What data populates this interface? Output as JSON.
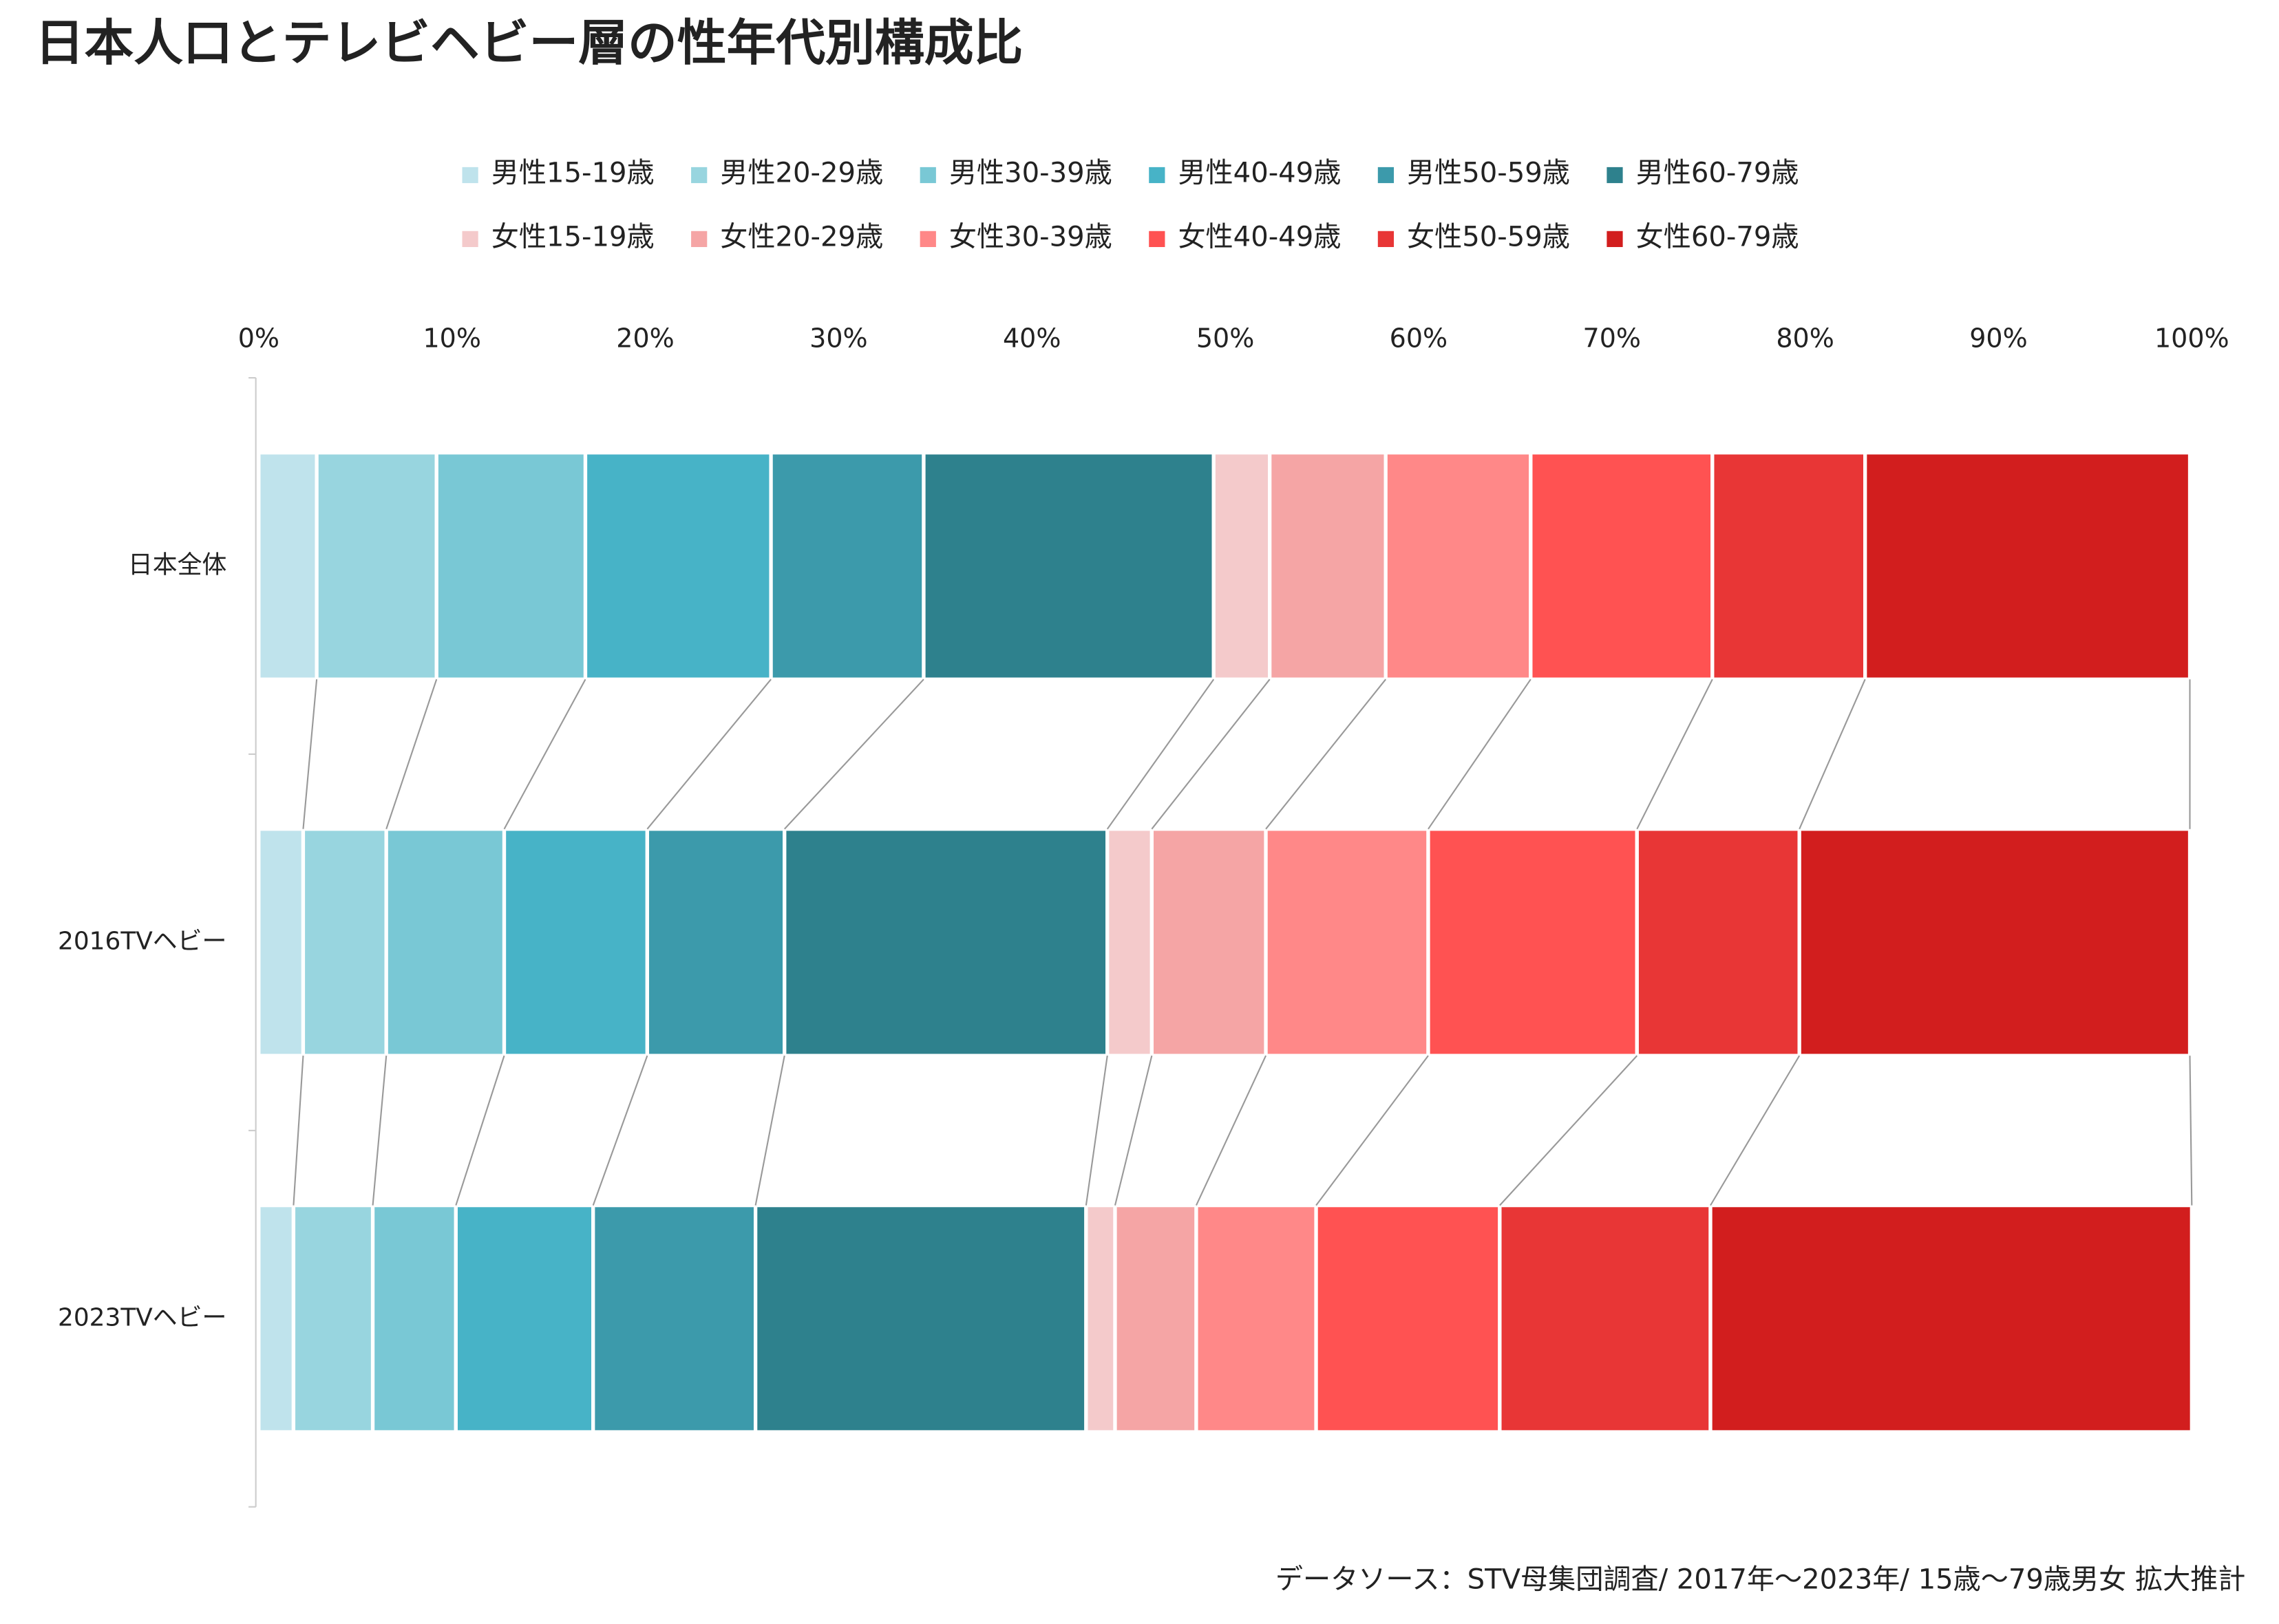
{
  "chart_data": {
    "type": "bar",
    "orientation": "horizontal",
    "stacked": true,
    "title": "日本人口とテレビヘビー層の性年代別構成比",
    "source": "データソース：STV母集団調査/ 2017年～2023年/ 15歳～79歳男女 拡大推計",
    "categories": [
      "日本全体",
      "2016TVヘビー",
      "2023TVヘビー"
    ],
    "series": [
      {
        "name": "男性15-19歳",
        "color": "#bfe3ec",
        "values": [
          3.0,
          2.3,
          1.8
        ]
      },
      {
        "name": "男性20-29歳",
        "color": "#98d5df",
        "values": [
          6.2,
          4.3,
          4.1
        ]
      },
      {
        "name": "男性30-39歳",
        "color": "#79c8d5",
        "values": [
          7.7,
          6.1,
          4.3
        ]
      },
      {
        "name": "男性40-49歳",
        "color": "#47b3c7",
        "values": [
          9.6,
          7.4,
          7.1
        ]
      },
      {
        "name": "男性50-59歳",
        "color": "#3c9aab",
        "values": [
          7.9,
          7.1,
          8.4
        ]
      },
      {
        "name": "男性60-79歳",
        "color": "#2e818d",
        "values": [
          15.0,
          16.7,
          17.1
        ]
      },
      {
        "name": "女性15-19歳",
        "color": "#f4cacb",
        "values": [
          2.9,
          2.3,
          1.5
        ]
      },
      {
        "name": "女性20-29歳",
        "color": "#f5a5a5",
        "values": [
          6.0,
          5.9,
          4.2
        ]
      },
      {
        "name": "女性30-39歳",
        "color": "#ff8888",
        "values": [
          7.5,
          8.4,
          6.2
        ]
      },
      {
        "name": "女性40-49歳",
        "color": "#ff5252",
        "values": [
          9.4,
          10.8,
          9.5
        ]
      },
      {
        "name": "女性50-59歳",
        "color": "#e83636",
        "values": [
          7.9,
          8.4,
          10.9
        ]
      },
      {
        "name": "女性60-79歳",
        "color": "#d21e1e",
        "values": [
          16.8,
          20.2,
          24.9
        ]
      }
    ],
    "xlim": [
      0,
      100
    ],
    "xticks": [
      {
        "value": 0,
        "label": "0%"
      },
      {
        "value": 10,
        "label": "10%"
      },
      {
        "value": 20,
        "label": "20%"
      },
      {
        "value": 30,
        "label": "30%"
      },
      {
        "value": 40,
        "label": "40%"
      },
      {
        "value": 50,
        "label": "50%"
      },
      {
        "value": 60,
        "label": "60%"
      },
      {
        "value": 70,
        "label": "70%"
      },
      {
        "value": 80,
        "label": "80%"
      },
      {
        "value": 90,
        "label": "90%"
      },
      {
        "value": 100,
        "label": "100%"
      }
    ],
    "connectors": true
  }
}
